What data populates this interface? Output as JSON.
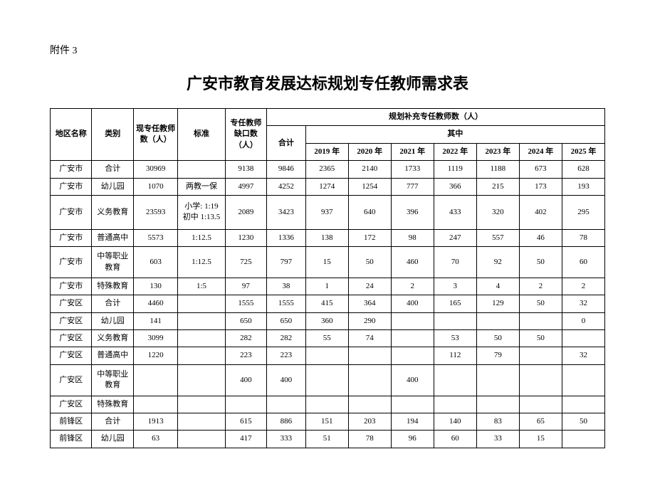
{
  "attachment_label": "附件 3",
  "title": "广安市教育发展达标规划专任教师需求表",
  "background_color": "#ffffff",
  "border_color": "#000000",
  "font_family": "SimSun",
  "headers": {
    "region": "地区名称",
    "category": "类别",
    "current_teachers": "现专任教师数（人）",
    "standard": "标准",
    "shortage": "专任教师缺口数（人）",
    "planned_supplement": "规划补充专任教师数（人）",
    "total": "合计",
    "of_which": "其中",
    "y2019": "2019 年",
    "y2020": "2020 年",
    "y2021": "2021 年",
    "y2022": "2022 年",
    "y2023": "2023 年",
    "y2024": "2024 年",
    "y2025": "2025 年"
  },
  "rows": [
    {
      "region": "广安市",
      "category": "合计",
      "current": "30969",
      "standard": "",
      "shortage": "9138",
      "total": "9846",
      "y2019": "2365",
      "y2020": "2140",
      "y2021": "1733",
      "y2022": "1119",
      "y2023": "1188",
      "y2024": "673",
      "y2025": "628",
      "cls": ""
    },
    {
      "region": "广安市",
      "category": "幼儿园",
      "current": "1070",
      "standard": "两教一保",
      "shortage": "4997",
      "total": "4252",
      "y2019": "1274",
      "y2020": "1254",
      "y2021": "777",
      "y2022": "366",
      "y2023": "215",
      "y2024": "173",
      "y2025": "193",
      "cls": ""
    },
    {
      "region": "广安市",
      "category": "义务教育",
      "current": "23593",
      "standard": "小学: 1:19\n初中 1:13.5",
      "shortage": "2089",
      "total": "3423",
      "y2019": "937",
      "y2020": "640",
      "y2021": "396",
      "y2022": "433",
      "y2023": "320",
      "y2024": "402",
      "y2025": "295",
      "cls": "row-tall"
    },
    {
      "region": "广安市",
      "category": "普通高中",
      "current": "5573",
      "standard": "1:12.5",
      "shortage": "1230",
      "total": "1336",
      "y2019": "138",
      "y2020": "172",
      "y2021": "98",
      "y2022": "247",
      "y2023": "557",
      "y2024": "46",
      "y2025": "78",
      "cls": ""
    },
    {
      "region": "广安市",
      "category": "中等职业教育",
      "current": "603",
      "standard": "1:12.5",
      "shortage": "725",
      "total": "797",
      "y2019": "15",
      "y2020": "50",
      "y2021": "460",
      "y2022": "70",
      "y2023": "92",
      "y2024": "50",
      "y2025": "60",
      "cls": "row-med"
    },
    {
      "region": "广安市",
      "category": "特殊教育",
      "current": "130",
      "standard": "1:5",
      "shortage": "97",
      "total": "38",
      "y2019": "1",
      "y2020": "24",
      "y2021": "2",
      "y2022": "3",
      "y2023": "4",
      "y2024": "2",
      "y2025": "2",
      "cls": ""
    },
    {
      "region": "广安区",
      "category": "合计",
      "current": "4460",
      "standard": "",
      "shortage": "1555",
      "total": "1555",
      "y2019": "415",
      "y2020": "364",
      "y2021": "400",
      "y2022": "165",
      "y2023": "129",
      "y2024": "50",
      "y2025": "32",
      "cls": ""
    },
    {
      "region": "广安区",
      "category": "幼儿园",
      "current": "141",
      "standard": "",
      "shortage": "650",
      "total": "650",
      "y2019": "360",
      "y2020": "290",
      "y2021": "",
      "y2022": "",
      "y2023": "",
      "y2024": "",
      "y2025": "0",
      "cls": ""
    },
    {
      "region": "广安区",
      "category": "义务教育",
      "current": "3099",
      "standard": "",
      "shortage": "282",
      "total": "282",
      "y2019": "55",
      "y2020": "74",
      "y2021": "",
      "y2022": "53",
      "y2023": "50",
      "y2024": "50",
      "y2025": "",
      "cls": ""
    },
    {
      "region": "广安区",
      "category": "普通高中",
      "current": "1220",
      "standard": "",
      "shortage": "223",
      "total": "223",
      "y2019": "",
      "y2020": "",
      "y2021": "",
      "y2022": "112",
      "y2023": "79",
      "y2024": "",
      "y2025": "32",
      "cls": ""
    },
    {
      "region": "广安区",
      "category": "中等职业教育",
      "current": "",
      "standard": "",
      "shortage": "400",
      "total": "400",
      "y2019": "",
      "y2020": "",
      "y2021": "400",
      "y2022": "",
      "y2023": "",
      "y2024": "",
      "y2025": "",
      "cls": "row-med"
    },
    {
      "region": "广安区",
      "category": "特殊教育",
      "current": "",
      "standard": "",
      "shortage": "",
      "total": "",
      "y2019": "",
      "y2020": "",
      "y2021": "",
      "y2022": "",
      "y2023": "",
      "y2024": "",
      "y2025": "",
      "cls": ""
    },
    {
      "region": "前锋区",
      "category": "合计",
      "current": "1913",
      "standard": "",
      "shortage": "615",
      "total": "886",
      "y2019": "151",
      "y2020": "203",
      "y2021": "194",
      "y2022": "140",
      "y2023": "83",
      "y2024": "65",
      "y2025": "50",
      "cls": ""
    },
    {
      "region": "前锋区",
      "category": "幼儿园",
      "current": "63",
      "standard": "",
      "shortage": "417",
      "total": "333",
      "y2019": "51",
      "y2020": "78",
      "y2021": "96",
      "y2022": "60",
      "y2023": "33",
      "y2024": "15",
      "y2025": "",
      "cls": ""
    }
  ],
  "col_widths": {
    "region": "7.5%",
    "category": "7.5%",
    "current": "8%",
    "standard": "8.5%",
    "shortage": "7.5%",
    "total": "7%",
    "year": "7.7%"
  }
}
